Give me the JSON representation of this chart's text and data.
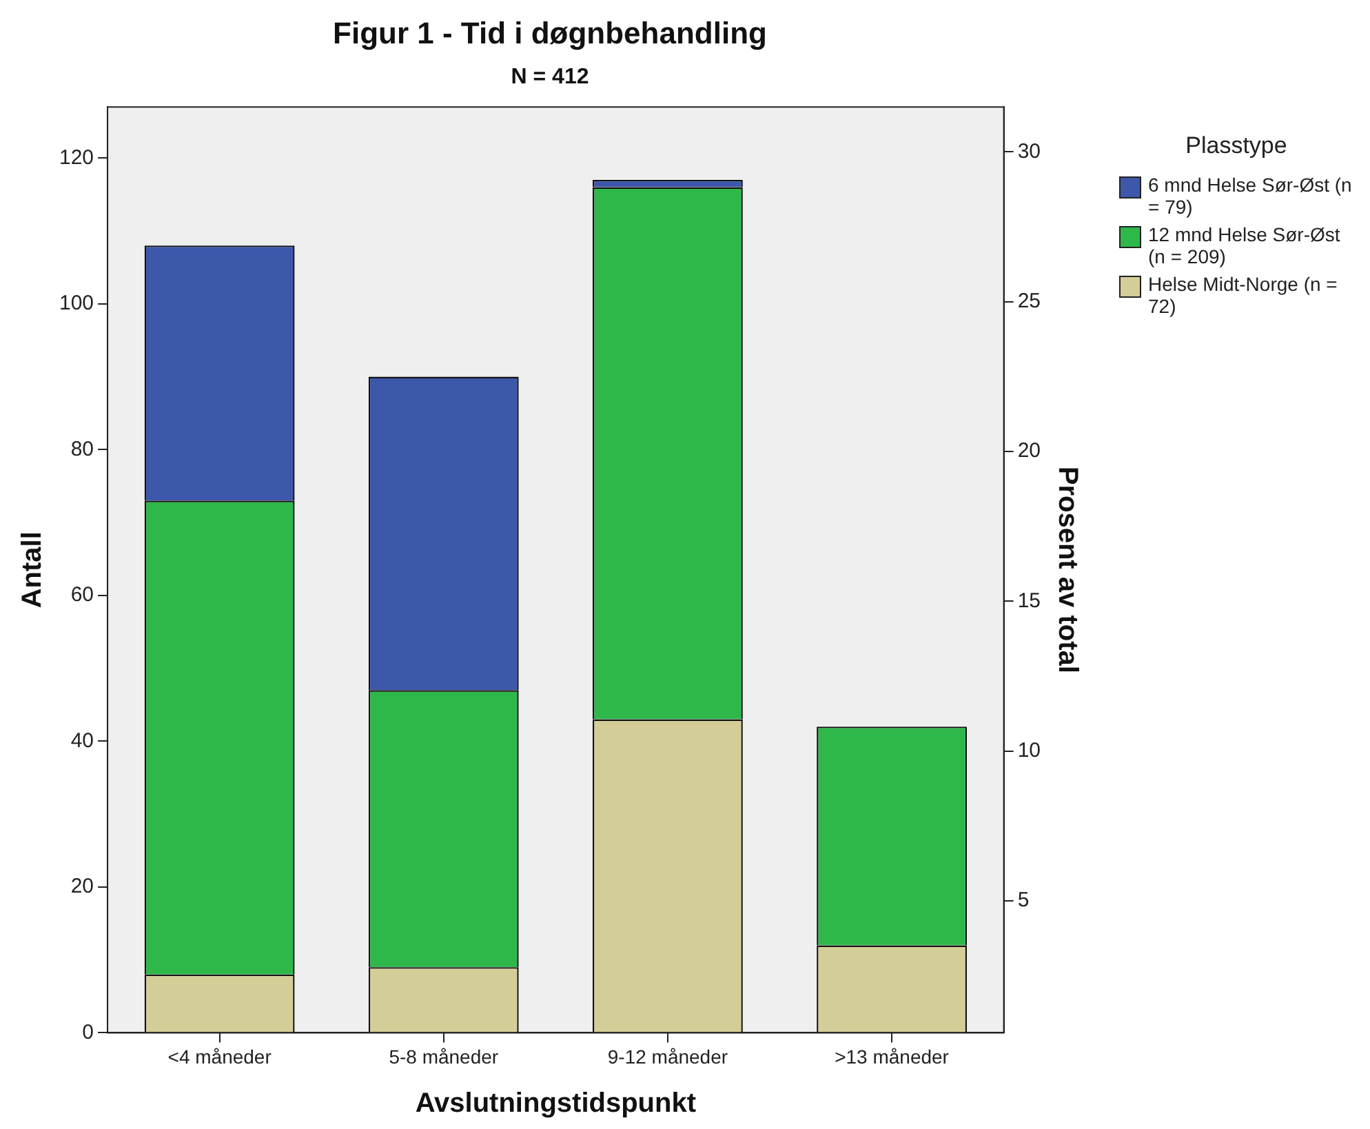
{
  "chart_data": {
    "type": "bar",
    "title": "Figur 1 - Tid i døgnbehandling",
    "subtitle": "N = 412",
    "xlabel": "Avslutningstidspunkt",
    "ylabel": "Antall",
    "y2label": "Prosent av total",
    "legend_title": "Plasstype",
    "categories": [
      "<4 måneder",
      "5-8 måneder",
      "9-12 måneder",
      ">13 måneder"
    ],
    "stacked": true,
    "series": [
      {
        "name": "Helse Midt-Norge (n = 72)",
        "color": "#d3ce98",
        "values": [
          8,
          9,
          43,
          12
        ]
      },
      {
        "name": "12 mnd Helse Sør-Øst (n = 209)",
        "color": "#2fb84a",
        "values": [
          65,
          38,
          73,
          30
        ]
      },
      {
        "name": "6 mnd Helse Sør-Øst (n = 79)",
        "color": "#3d57ab",
        "values": [
          35,
          43,
          1,
          0
        ]
      }
    ],
    "ylim": [
      0,
      127
    ],
    "yticks": [
      0,
      20,
      40,
      60,
      80,
      100,
      120
    ],
    "y2lim": [
      0.6,
      31.5
    ],
    "y2ticks": [
      5,
      10,
      15,
      20,
      25,
      30
    ],
    "grid": false,
    "legend": "top right"
  }
}
